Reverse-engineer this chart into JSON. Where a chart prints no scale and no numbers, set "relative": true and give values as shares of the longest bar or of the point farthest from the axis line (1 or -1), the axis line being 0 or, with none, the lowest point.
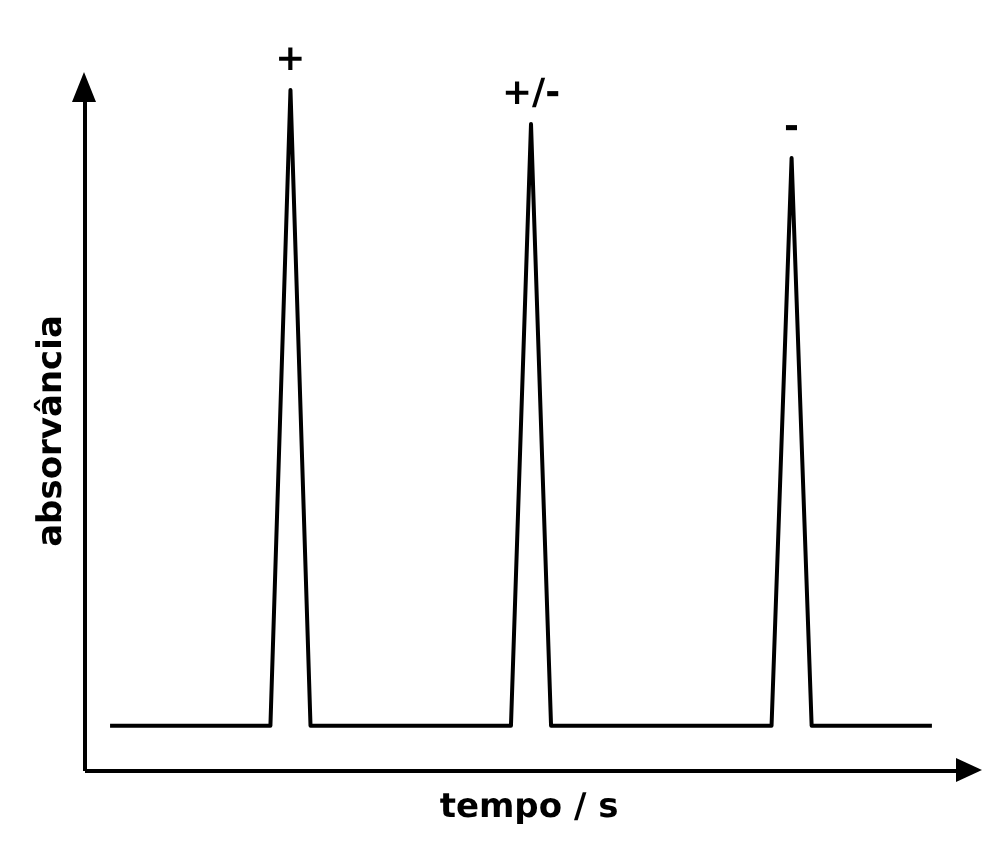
{
  "chart_data": {
    "type": "line",
    "relative": true,
    "xlabel": "tempo / s",
    "ylabel": "absorvância",
    "annotations": [
      "+",
      "+/-",
      "-"
    ],
    "color": "#000000",
    "grid": false,
    "marker": "none",
    "line_style": "solid",
    "categories": [
      null,
      null,
      null,
      null,
      null,
      null,
      null,
      null,
      null,
      null,
      null,
      null,
      null,
      null,
      null,
      null,
      null,
      null,
      null,
      null,
      null,
      null,
      null,
      null,
      null,
      null,
      null,
      null,
      null,
      null,
      null,
      null,
      null,
      null,
      null,
      null,
      null,
      null,
      null,
      null,
      null,
      null
    ],
    "values": [
      0.065,
      0.065,
      0.065,
      0.065,
      0.065,
      0.065,
      0.065,
      0.065,
      0.065,
      1,
      0.065,
      0.065,
      0.065,
      0.065,
      0.065,
      0.065,
      0.065,
      0.065,
      0.065,
      0.065,
      0.065,
      0.95,
      0.065,
      0.065,
      0.065,
      0.065,
      0.065,
      0.065,
      0.065,
      0.065,
      0.065,
      0.065,
      0.065,
      0.065,
      0.9,
      0.065,
      0.065,
      0.065,
      0.065,
      0.065,
      0.065,
      0.065
    ]
  }
}
